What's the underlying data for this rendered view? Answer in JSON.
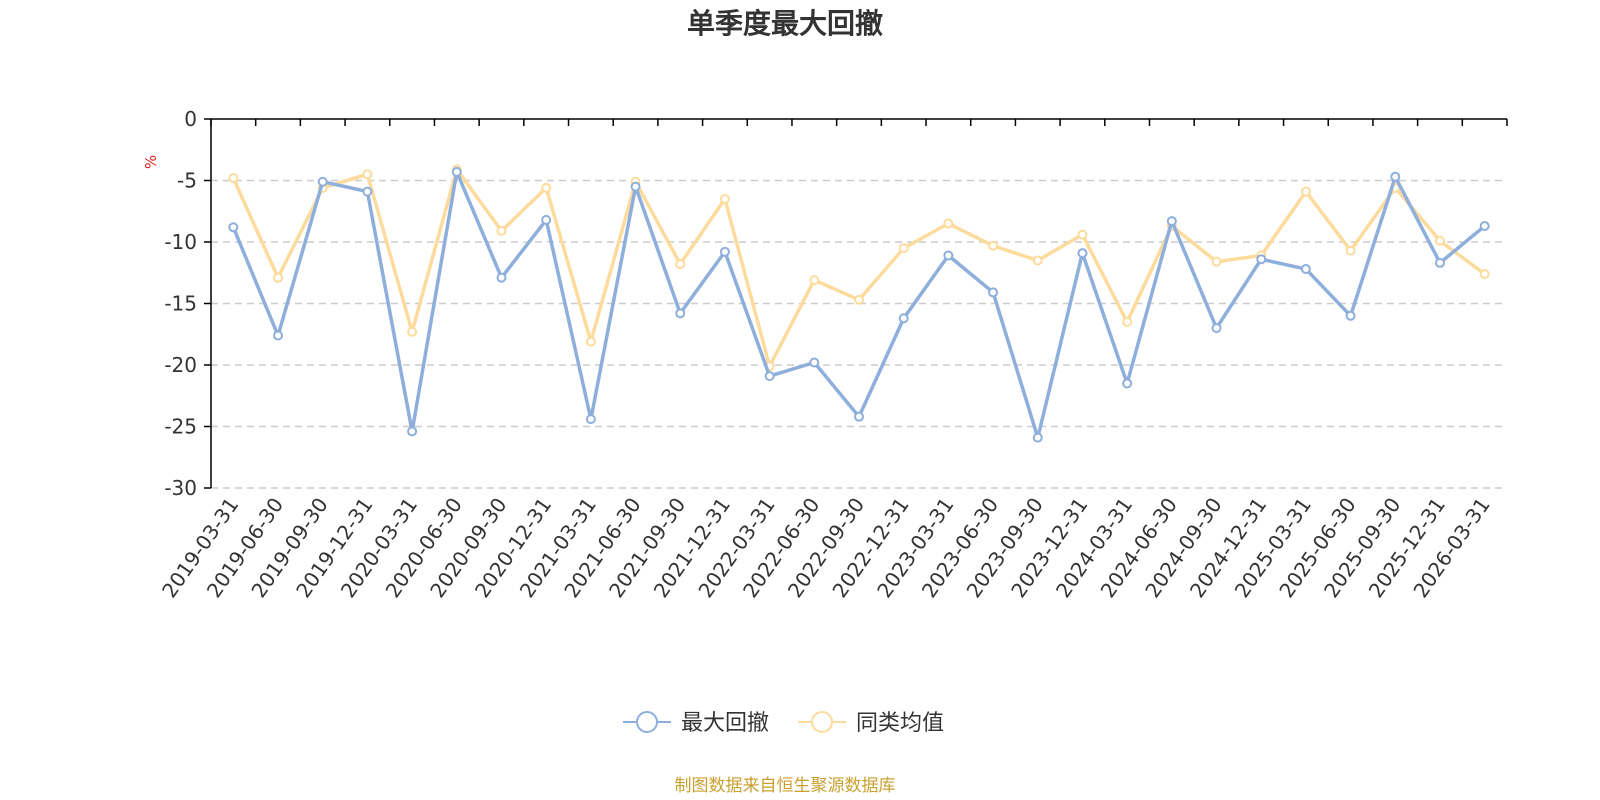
{
  "chart_data": {
    "type": "line",
    "title": "单季度最大回撤",
    "ylabel": "%",
    "ylim": [
      -30,
      0
    ],
    "yticks": [
      0,
      -5,
      -10,
      -15,
      -20,
      -25,
      -30
    ],
    "grid": true,
    "legend_position": "bottom",
    "categories": [
      "2019-03-31",
      "2019-06-30",
      "2019-09-30",
      "2019-12-31",
      "2020-03-31",
      "2020-06-30",
      "2020-09-30",
      "2020-12-31",
      "2021-03-31",
      "2021-06-30",
      "2021-09-30",
      "2021-12-31",
      "2022-03-31",
      "2022-06-30",
      "2022-09-30",
      "2022-12-31",
      "2023-03-31",
      "2023-06-30",
      "2023-09-30",
      "2023-12-31",
      "2024-03-31",
      "2024-06-30",
      "2024-09-30",
      "2024-12-31",
      "2025-03-31",
      "2025-06-30",
      "2025-09-30",
      "2025-12-31",
      "2026-03-31"
    ],
    "series": [
      {
        "name": "最大回撤",
        "color": "#8eaedb",
        "values": [
          -8.8,
          -17.6,
          -5.1,
          -5.9,
          -25.4,
          -4.3,
          -12.9,
          -8.2,
          -24.4,
          -5.5,
          -15.8,
          -10.8,
          -20.9,
          -19.8,
          -24.2,
          -16.2,
          -11.1,
          -14.1,
          -25.9,
          -10.9,
          -21.5,
          -8.3,
          -17.0,
          -11.4,
          -12.2,
          -16.0,
          -4.7,
          -11.7,
          -8.7
        ]
      },
      {
        "name": "同类均值",
        "color": "#fddb9c",
        "values": [
          -4.8,
          -12.9,
          -5.6,
          -4.5,
          -17.3,
          -4.1,
          -9.1,
          -5.6,
          -18.1,
          -5.1,
          -11.8,
          -6.5,
          -20.1,
          -13.1,
          -14.7,
          -10.5,
          -8.5,
          -10.3,
          -11.5,
          -9.4,
          -16.5,
          -8.7,
          -11.6,
          -11.1,
          -5.9,
          -10.7,
          -5.6,
          -9.9,
          -12.6
        ]
      }
    ]
  },
  "footer": {
    "source": "制图数据来自恒生聚源数据库"
  },
  "colors": {
    "axis": "#000000",
    "grid": "#cccccc",
    "text": "#333333",
    "unit": "#e02020",
    "source": "#c9a030"
  }
}
